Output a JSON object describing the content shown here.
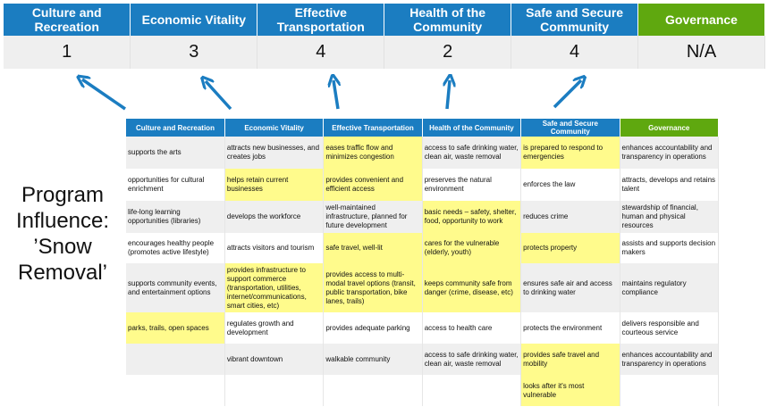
{
  "summary": {
    "columns": [
      {
        "label": "Culture and Recreation",
        "score": "1",
        "color": "#1b7dc1"
      },
      {
        "label": "Economic Vitality",
        "score": "3",
        "color": "#1b7dc1"
      },
      {
        "label": "Effective Transportation",
        "score": "4",
        "color": "#1b7dc1"
      },
      {
        "label": "Health of the Community",
        "score": "2",
        "color": "#1b7dc1"
      },
      {
        "label": "Safe and Secure Community",
        "score": "4",
        "color": "#1b7dc1"
      },
      {
        "label": "Governance",
        "score": "N/A",
        "color": "#5fa80f"
      }
    ]
  },
  "side_label": "Program Influence: ’Snow Removal’",
  "highlight_color": "#fffb8c",
  "grid": {
    "headers": [
      "Culture and Recreation",
      "Economic Vitality",
      "Effective Transportation",
      "Health of the Community",
      "Safe and Secure Community",
      "Governance"
    ],
    "rows": [
      [
        {
          "t": "supports the arts",
          "h": false
        },
        {
          "t": "attracts new businesses, and creates jobs",
          "h": false
        },
        {
          "t": "eases traffic flow and minimizes congestion",
          "h": true
        },
        {
          "t": "access to safe drinking water, clean air, waste removal",
          "h": false
        },
        {
          "t": "is prepared to respond to emergencies",
          "h": true
        },
        {
          "t": "enhances accountability and transparency in operations",
          "h": false
        }
      ],
      [
        {
          "t": "opportunities for cultural enrichment",
          "h": false
        },
        {
          "t": "helps retain current businesses",
          "h": true
        },
        {
          "t": "provides convenient and efficient access",
          "h": true
        },
        {
          "t": "preserves the natural environment",
          "h": false
        },
        {
          "t": "enforces the law",
          "h": false
        },
        {
          "t": "attracts, develops and retains talent",
          "h": false
        }
      ],
      [
        {
          "t": "life-long learning opportunities (libraries)",
          "h": false
        },
        {
          "t": "develops the workforce",
          "h": false
        },
        {
          "t": "well-maintained infrastructure, planned for future development",
          "h": false
        },
        {
          "t": "basic needs – safety, shelter, food, opportunity to work",
          "h": true
        },
        {
          "t": "reduces crime",
          "h": false
        },
        {
          "t": "stewardship of financial, human and physical resources",
          "h": false
        }
      ],
      [
        {
          "t": "encourages healthy people (promotes active lifestyle)",
          "h": false
        },
        {
          "t": "attracts visitors and tourism",
          "h": false
        },
        {
          "t": "safe travel, well-lit",
          "h": true
        },
        {
          "t": "cares for the vulnerable (elderly, youth)",
          "h": true
        },
        {
          "t": "protects property",
          "h": true
        },
        {
          "t": "assists and supports decision makers",
          "h": false
        }
      ],
      [
        {
          "t": "supports community events, and entertainment options",
          "h": false
        },
        {
          "t": "provides infrastructure to support commerce (transportation, utilities, internet/communications, smart cities, etc)",
          "h": true
        },
        {
          "t": "provides access to multi-modal travel options (transit, public transportation, bike lanes, trails)",
          "h": true
        },
        {
          "t": "keeps community safe from danger (crime, disease, etc)",
          "h": true
        },
        {
          "t": "ensures safe air and access to drinking water",
          "h": false
        },
        {
          "t": "maintains regulatory compliance",
          "h": false
        }
      ],
      [
        {
          "t": "parks, trails, open spaces",
          "h": true
        },
        {
          "t": "regulates growth and development",
          "h": false
        },
        {
          "t": "provides adequate parking",
          "h": false
        },
        {
          "t": "access to health care",
          "h": false
        },
        {
          "t": "protects the environment",
          "h": false
        },
        {
          "t": "delivers responsible and courteous service",
          "h": false
        }
      ],
      [
        {
          "t": "",
          "h": false
        },
        {
          "t": "vibrant downtown",
          "h": false
        },
        {
          "t": "walkable community",
          "h": false
        },
        {
          "t": "access to safe drinking water, clean air, waste removal",
          "h": false
        },
        {
          "t": "provides safe travel and mobility",
          "h": true
        },
        {
          "t": "enhances accountability and transparency in operations",
          "h": false
        }
      ],
      [
        {
          "t": "",
          "h": false
        },
        {
          "t": "",
          "h": false
        },
        {
          "t": "",
          "h": false
        },
        {
          "t": "",
          "h": false
        },
        {
          "t": "looks after it's most vulnerable",
          "h": true
        },
        {
          "t": "",
          "h": false
        }
      ]
    ]
  }
}
